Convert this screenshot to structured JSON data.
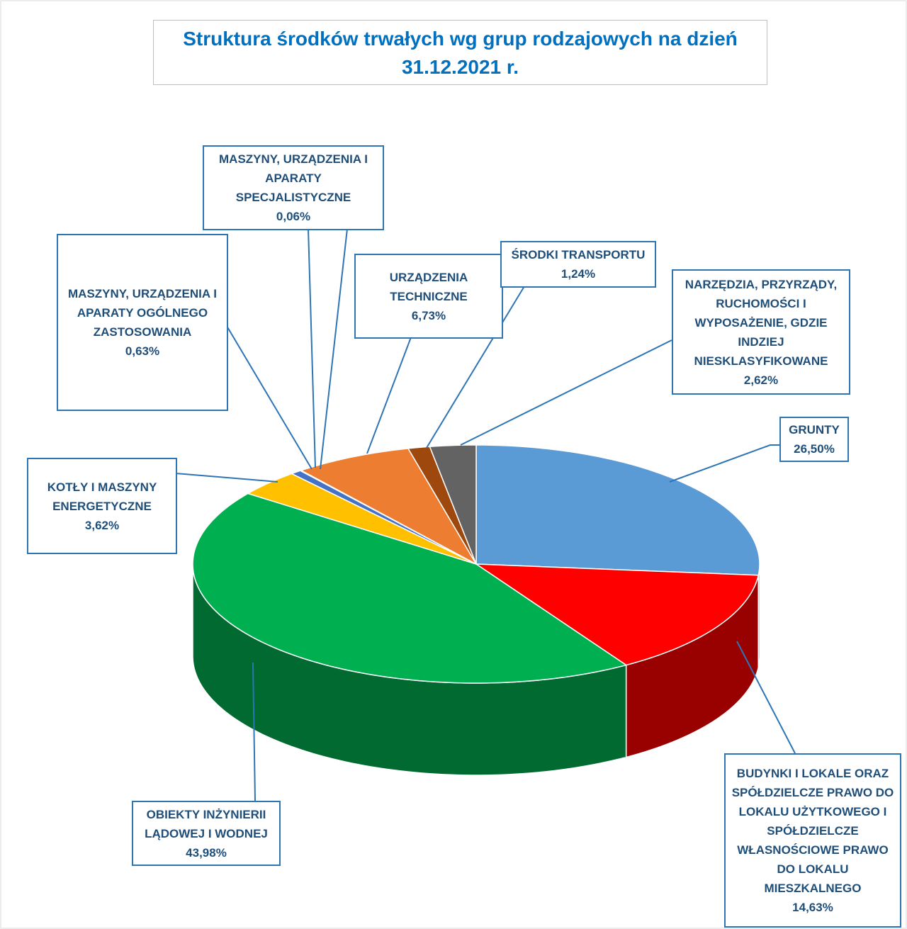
{
  "chart_data": {
    "type": "pie3d",
    "title": "Struktura środków trwałych wg grup rodzajowych na dzień 31.12.2021 r.",
    "categories": [
      "GRUNTY",
      "BUDYNKI I LOKALE ORAZ SPÓŁDZIELCZE PRAWO DO LOKALU UŻYTKOWEGO I SPÓŁDZIELCZE WŁASNOŚCIOWE PRAWO DO LOKALU MIESZKALNEGO",
      "OBIEKTY INŻYNIERII LĄDOWEJ I WODNEJ",
      "KOTŁY I MASZYNY ENERGETYCZNE",
      "MASZYNY, URZĄDZENIA I APARATY OGÓLNEGO ZASTOSOWANIA",
      "MASZYNY, URZĄDZENIA I APARATY SPECJALISTYCZNE",
      "URZĄDZENIA TECHNICZNE",
      "ŚRODKI TRANSPORTU",
      "NARZĘDZIA, PRZYRZĄDY, RUCHOMOŚCI I WYPOSAŻENIE, GDZIE INDZIEJ NIESKLASYFIKOWANE"
    ],
    "values": [
      26.5,
      14.63,
      43.98,
      3.62,
      0.63,
      0.06,
      6.73,
      1.24,
      2.62
    ],
    "value_labels": [
      "26,50%",
      "14,63%",
      "43,98%",
      "3,62%",
      "0,63%",
      "0,06%",
      "6,73%",
      "1,24%",
      "2,62%"
    ],
    "colors": [
      "#5b9bd5",
      "#ff0000",
      "#00b050",
      "#ffc000",
      "#4472c4",
      "#a5a5a5",
      "#ed7d31",
      "#9e480e",
      "#636363"
    ]
  }
}
